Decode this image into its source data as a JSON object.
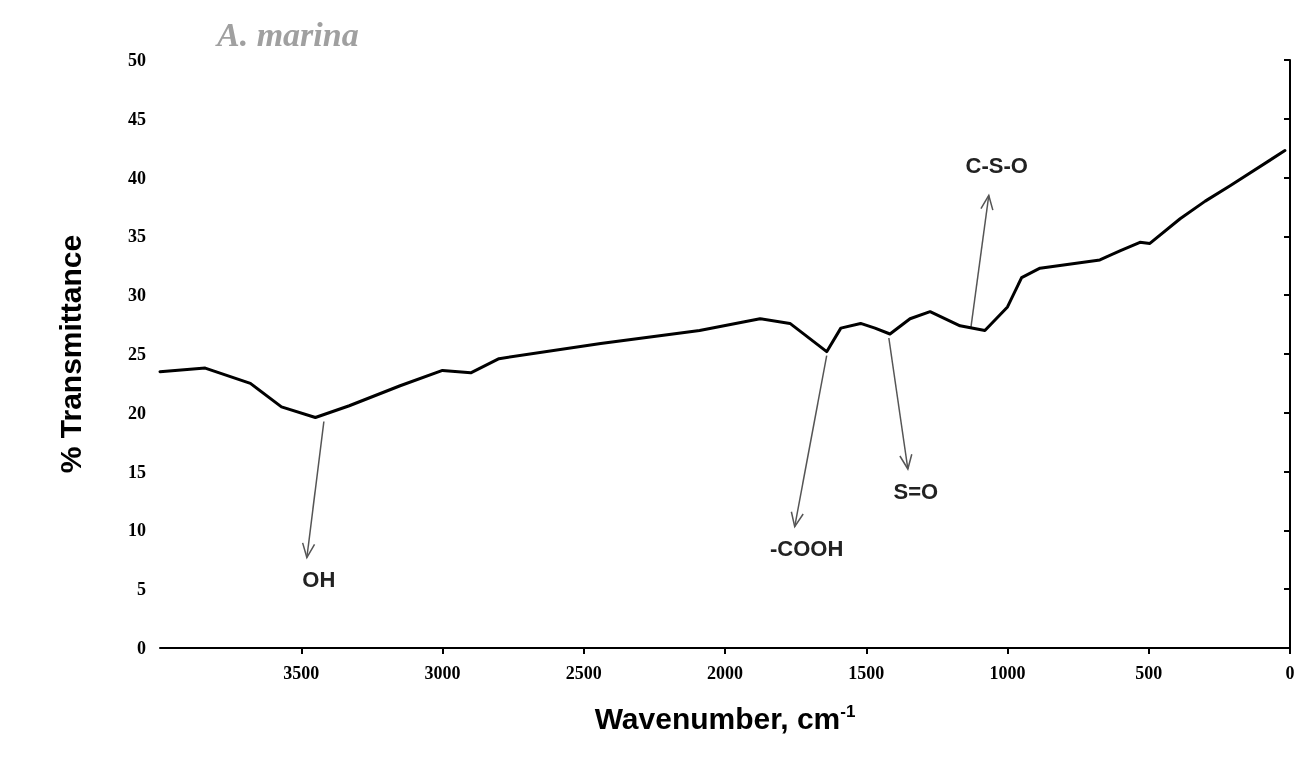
{
  "chart_data": {
    "type": "line",
    "title": "A. marina",
    "xlabel": "Wavenumber, cm$^{-1}$",
    "ylabel": "% Transmittance",
    "x": [
      4000,
      3840,
      3680,
      3570,
      3450,
      3330,
      3150,
      3000,
      2900,
      2800,
      2440,
      2090,
      1876,
      1770,
      1640,
      1590,
      1520,
      1469,
      1416,
      1345,
      1274,
      1168,
      1080,
      1000,
      950,
      885,
      673,
      600,
      531,
      496,
      389,
      300,
      212,
      18
    ],
    "series": [
      {
        "color": "#000000",
        "values": [
          23.5,
          23.8,
          22.5,
          20.5,
          19.6,
          20.6,
          22.3,
          23.6,
          23.4,
          24.6,
          25.9,
          27,
          28,
          27.6,
          25.2,
          27.2,
          27.6,
          27.2,
          26.7,
          28,
          28.6,
          27.4,
          27,
          29,
          31.5,
          32.3,
          33,
          33.8,
          34.5,
          34.4,
          36.5,
          38,
          39.3,
          42.3
        ]
      }
    ],
    "xlim": [
      4000,
      0
    ],
    "xticks": [
      3500,
      3000,
      2500,
      2000,
      1500,
      1000,
      500,
      0
    ],
    "ylim": [
      0,
      50
    ],
    "yticks": [
      0,
      5,
      10,
      15,
      20,
      25,
      30,
      35,
      40,
      45,
      50
    ],
    "grid": false,
    "marker": "none",
    "line_style": "solid",
    "annotations": [
      {
        "text": "OH",
        "x": 3420,
        "y": 19.6
      },
      {
        "text": "-COOH",
        "x": 1640,
        "y": 25.2
      },
      {
        "text": "S=O",
        "x": 1420,
        "y": 26.7
      },
      {
        "text": "C-S-O",
        "x": 1130,
        "y": 27
      }
    ]
  }
}
